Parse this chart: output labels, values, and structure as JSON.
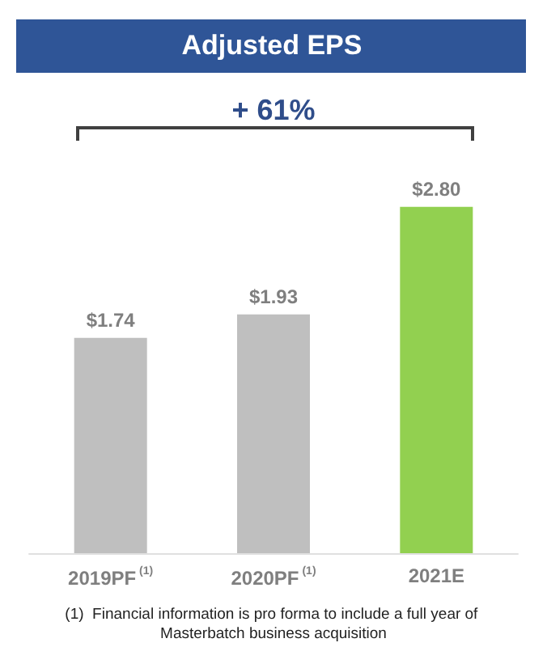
{
  "chart_data": {
    "type": "bar",
    "title": "Adjusted EPS",
    "categories": [
      "2019PF$^{(1)}$",
      "2020PF$^{(1)}$",
      "2021E"
    ],
    "values": [
      1.74,
      1.93,
      2.8
    ],
    "colors": [
      "#bfbfbf",
      "#bfbfbf",
      "#92d050"
    ],
    "value_labels": [
      "$1.74",
      "$1.93",
      "$2.80"
    ],
    "annotations": [
      "+ 61%",
      "(1)  Financial information is pro forma to include a full year of Masterbatch business acquisition"
    ]
  }
}
